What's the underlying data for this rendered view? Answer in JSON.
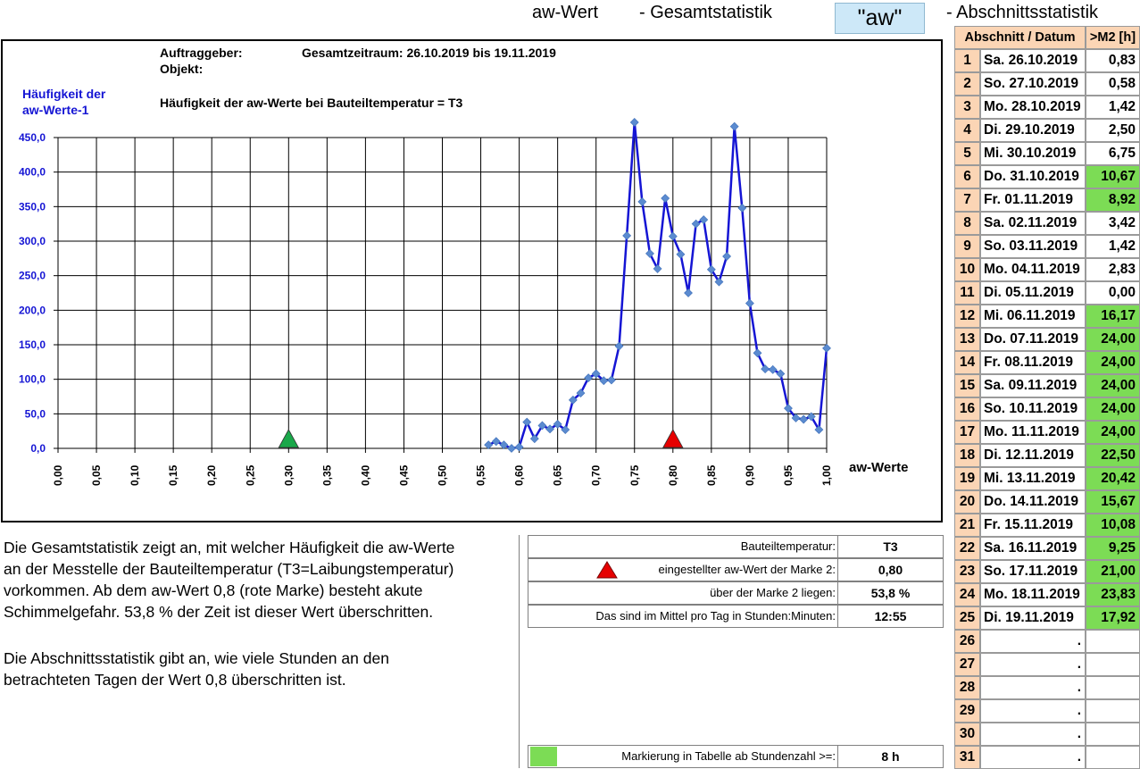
{
  "header": {
    "title_left": "aw-Wert",
    "title_mid": "- Gesamtstatistik",
    "aw_button": "\"aw\"",
    "title_right": "- Abschnittsstatistik"
  },
  "chart_meta": {
    "auftraggeber_label": "Auftraggeber:",
    "objekt_label": "Objekt:",
    "zeitraum": "Gesamtzeitraum: 26.10.2019 bis 19.11.2019",
    "subtitle": "Häufigkeit der aw-Werte bei Bauteiltemperatur = T3",
    "ylabel_line1": "Häufigkeit der",
    "ylabel_line2": "aw-Werte-1"
  },
  "chart_data": {
    "type": "line",
    "title": "Häufigkeit der aw-Werte bei Bauteiltemperatur = T3",
    "ylabel": "Häufigkeit der aw-Werte-1",
    "xlabel": "aw-Werte",
    "xlim": [
      0.0,
      1.0
    ],
    "ylim": [
      0,
      450
    ],
    "yticks": [
      "0,0",
      "50,0",
      "100,0",
      "150,0",
      "200,0",
      "250,0",
      "300,0",
      "350,0",
      "400,0",
      "450,0"
    ],
    "xticks": [
      "0,00",
      "0,05",
      "0,10",
      "0,15",
      "0,20",
      "0,25",
      "0,30",
      "0,35",
      "0,40",
      "0,45",
      "0,50",
      "0,55",
      "0,60",
      "0,65",
      "0,70",
      "0,75",
      "0,80",
      "0,85",
      "0,90",
      "0,95",
      "1,00"
    ],
    "grid": true,
    "series": [
      {
        "color": "#1515d4",
        "marker_color": "#5b8bd0",
        "x": [
          0.56,
          0.57,
          0.58,
          0.59,
          0.6,
          0.61,
          0.62,
          0.63,
          0.64,
          0.65,
          0.66,
          0.67,
          0.68,
          0.69,
          0.7,
          0.71,
          0.72,
          0.73,
          0.74,
          0.75,
          0.76,
          0.77,
          0.78,
          0.79,
          0.8,
          0.81,
          0.82,
          0.83,
          0.84,
          0.85,
          0.86,
          0.87,
          0.88,
          0.89,
          0.9,
          0.91,
          0.92,
          0.93,
          0.94,
          0.95,
          0.96,
          0.97,
          0.98,
          0.99,
          1.0
        ],
        "y": [
          5,
          10,
          5,
          0,
          2,
          38,
          14,
          33,
          28,
          35,
          27,
          70,
          80,
          102,
          108,
          98,
          99,
          148,
          308,
          472,
          357,
          282,
          260,
          362,
          307,
          281,
          225,
          325,
          331,
          259,
          241,
          278,
          466,
          348,
          210,
          138,
          115,
          114,
          108,
          58,
          44,
          42,
          46,
          27,
          145
        ]
      }
    ],
    "markers": [
      {
        "x": 0.3,
        "color": "#1aa84a",
        "label": "Marke 1"
      },
      {
        "x": 0.8,
        "color": "#e60000",
        "label": "Marke 2"
      }
    ]
  },
  "description": {
    "p1": [
      "Die Gesamtstatistik zeigt an, mit welcher Häufigkeit die aw-Werte",
      "an der Messtelle der Bauteiltemperatur (T3=Laibungstemperatur)",
      "vorkommen. Ab dem aw-Wert 0,8 (rote Marke) besteht akute",
      "Schimmelgefahr. 53,8 % der Zeit  ist dieser Wert überschritten."
    ],
    "p2": [
      "Die Abschnittsstatistik gibt an, wie viele Stunden an den",
      "betrachteten Tagen der Wert 0,8 überschritten ist."
    ]
  },
  "info": {
    "rows": [
      {
        "label": "Bauteiltemperatur:",
        "value": "T3"
      },
      {
        "label": "eingestellter aw-Wert der Marke 2:",
        "value": "0,80"
      },
      {
        "label": "über der Marke 2 liegen:",
        "value": "53,8 %"
      },
      {
        "label": "Das sind im Mittel pro Tag in Stunden:Minuten:",
        "value": "12:55"
      }
    ],
    "marking_label": "Markierung in Tabelle ab Stundenzahl >=:",
    "marking_value": "8 h",
    "highlight_color": "#7cdc55"
  },
  "table": {
    "header_section": "Abschnitt / Datum",
    "header_value": ">M2 [h]",
    "rows": [
      {
        "n": "1",
        "date": "Sa. 26.10.2019",
        "val": "0,83",
        "hi": false
      },
      {
        "n": "2",
        "date": "So. 27.10.2019",
        "val": "0,58",
        "hi": false
      },
      {
        "n": "3",
        "date": "Mo. 28.10.2019",
        "val": "1,42",
        "hi": false
      },
      {
        "n": "4",
        "date": "Di. 29.10.2019",
        "val": "2,50",
        "hi": false
      },
      {
        "n": "5",
        "date": "Mi. 30.10.2019",
        "val": "6,75",
        "hi": false
      },
      {
        "n": "6",
        "date": "Do. 31.10.2019",
        "val": "10,67",
        "hi": true
      },
      {
        "n": "7",
        "date": "Fr. 01.11.2019",
        "val": "8,92",
        "hi": true
      },
      {
        "n": "8",
        "date": "Sa. 02.11.2019",
        "val": "3,42",
        "hi": false
      },
      {
        "n": "9",
        "date": "So. 03.11.2019",
        "val": "1,42",
        "hi": false
      },
      {
        "n": "10",
        "date": "Mo. 04.11.2019",
        "val": "2,83",
        "hi": false
      },
      {
        "n": "11",
        "date": "Di. 05.11.2019",
        "val": "0,00",
        "hi": false
      },
      {
        "n": "12",
        "date": "Mi. 06.11.2019",
        "val": "16,17",
        "hi": true
      },
      {
        "n": "13",
        "date": "Do. 07.11.2019",
        "val": "24,00",
        "hi": true
      },
      {
        "n": "14",
        "date": "Fr. 08.11.2019",
        "val": "24,00",
        "hi": true
      },
      {
        "n": "15",
        "date": "Sa. 09.11.2019",
        "val": "24,00",
        "hi": true
      },
      {
        "n": "16",
        "date": "So. 10.11.2019",
        "val": "24,00",
        "hi": true
      },
      {
        "n": "17",
        "date": "Mo. 11.11.2019",
        "val": "24,00",
        "hi": true
      },
      {
        "n": "18",
        "date": "Di. 12.11.2019",
        "val": "22,50",
        "hi": true
      },
      {
        "n": "19",
        "date": "Mi. 13.11.2019",
        "val": "20,42",
        "hi": true
      },
      {
        "n": "20",
        "date": "Do. 14.11.2019",
        "val": "15,67",
        "hi": true
      },
      {
        "n": "21",
        "date": "Fr. 15.11.2019",
        "val": "10,08",
        "hi": true
      },
      {
        "n": "22",
        "date": "Sa. 16.11.2019",
        "val": "9,25",
        "hi": true
      },
      {
        "n": "23",
        "date": "So. 17.11.2019",
        "val": "21,00",
        "hi": true
      },
      {
        "n": "24",
        "date": "Mo. 18.11.2019",
        "val": "23,83",
        "hi": true
      },
      {
        "n": "25",
        "date": "Di. 19.11.2019",
        "val": "17,92",
        "hi": true
      },
      {
        "n": "26",
        "date": ".",
        "val": "",
        "hi": false
      },
      {
        "n": "27",
        "date": ".",
        "val": "",
        "hi": false
      },
      {
        "n": "28",
        "date": ".",
        "val": "",
        "hi": false
      },
      {
        "n": "29",
        "date": ".",
        "val": "",
        "hi": false
      },
      {
        "n": "30",
        "date": ".",
        "val": "",
        "hi": false
      },
      {
        "n": "31",
        "date": ".",
        "val": "",
        "hi": false
      }
    ]
  }
}
